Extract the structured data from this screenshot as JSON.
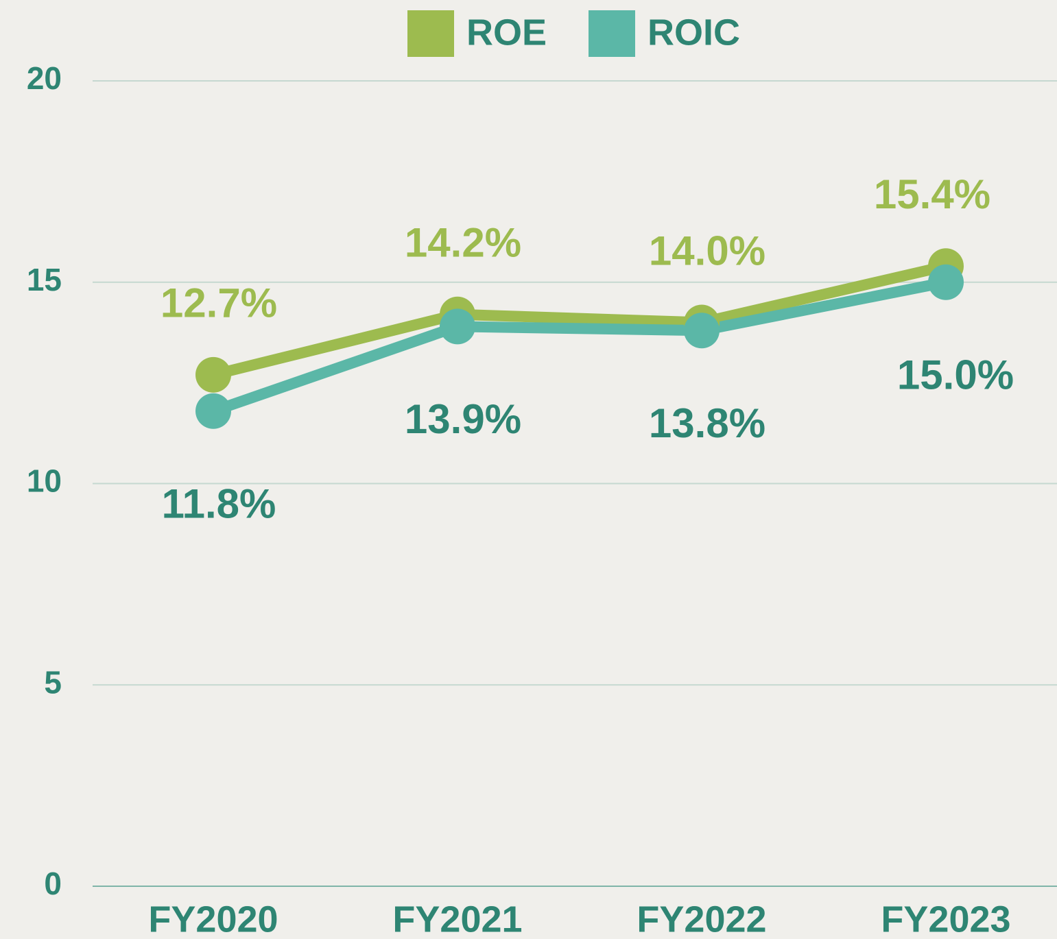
{
  "chart_data": {
    "type": "line",
    "categories": [
      "FY2020",
      "FY2021",
      "FY2022",
      "FY2023"
    ],
    "series": [
      {
        "name": "ROE",
        "color": "#9dbb4f",
        "values": [
          12.7,
          14.2,
          14.0,
          15.4
        ],
        "value_labels": [
          "12.7%",
          "14.2%",
          "14.0%",
          "15.4%"
        ]
      },
      {
        "name": "ROIC",
        "color": "#5bb7a7",
        "values": [
          11.8,
          13.9,
          13.8,
          15.0
        ],
        "value_labels": [
          "11.8%",
          "13.9%",
          "13.8%",
          "15.0%"
        ]
      }
    ],
    "ylim": [
      0,
      20
    ],
    "yticks": [
      0,
      5,
      10,
      15,
      20
    ],
    "grid": true,
    "legend": "top"
  }
}
